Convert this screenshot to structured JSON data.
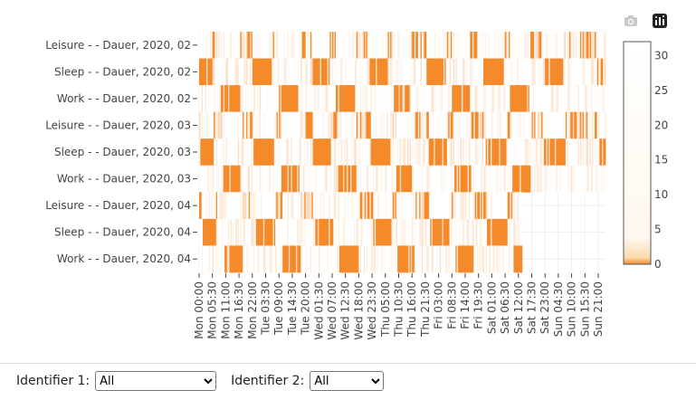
{
  "chart_data": {
    "type": "heatmap",
    "y_categories": [
      "Leisure - - Dauer, 2020, 02",
      "Sleep - - Dauer, 2020, 02",
      "Work - - Dauer, 2020, 02",
      "Leisure - - Dauer, 2020, 03",
      "Sleep - - Dauer, 2020, 03",
      "Work - - Dauer, 2020, 03",
      "Leisure - - Dauer, 2020, 04",
      "Sleep - - Dauer, 2020, 04",
      "Work - - Dauer, 2020, 04"
    ],
    "x_tick_labels": [
      "Mon 00:00",
      "Mon 05:30",
      "Mon 11:00",
      "Mon 16:30",
      "Mon 22:00",
      "Tue 03:30",
      "Tue 09:00",
      "Tue 14:30",
      "Tue 20:00",
      "Wed 01:30",
      "Wed 07:00",
      "Wed 12:30",
      "Wed 18:00",
      "Wed 23:30",
      "Thu 05:00",
      "Thu 10:30",
      "Thu 16:00",
      "Thu 21:30",
      "Fri 03:00",
      "Fri 08:30",
      "Fri 14:00",
      "Fri 19:30",
      "Sat 01:00",
      "Sat 06:30",
      "Sat 12:00",
      "Sat 17:30",
      "Sat 23:00",
      "Sun 04:30",
      "Sun 10:00",
      "Sun 15:30",
      "Sun 21:00"
    ],
    "x_bins_per_day": 48,
    "colorbar": {
      "min": 0,
      "max": 32,
      "ticks": [
        0,
        5,
        10,
        15,
        20,
        25,
        30
      ]
    },
    "colorscale": {
      "low": "#f58a2b",
      "high": "#ffffff"
    },
    "row_fill_end_day": [
      7,
      7,
      7,
      7,
      7,
      7,
      5.55,
      5.55,
      5.55
    ],
    "sleep_blocks": [
      [
        0.02,
        0.25
      ],
      [
        0.93,
        1.28
      ],
      [
        1.95,
        2.27
      ],
      [
        2.95,
        3.28
      ],
      [
        3.94,
        4.27
      ],
      [
        4.92,
        5.28
      ],
      [
        5.93,
        6.3
      ],
      [
        6.88,
        6.98
      ]
    ],
    "work_blocks": [
      [
        0.4,
        0.72
      ],
      [
        1.4,
        1.72
      ],
      [
        2.38,
        2.7
      ],
      [
        3.38,
        3.66
      ],
      [
        4.38,
        4.68
      ],
      [
        5.38,
        5.7
      ]
    ],
    "grid": true
  },
  "toolbar": {
    "camera": "camera-icon",
    "plotly": "plotly-logo-icon"
  },
  "controls": {
    "identifier1_label": "Identifier 1:",
    "identifier1_value": "All",
    "identifier2_label": "Identifier 2:",
    "identifier2_value": "All"
  }
}
